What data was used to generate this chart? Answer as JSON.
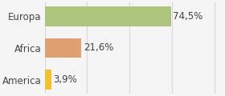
{
  "categories": [
    "America",
    "Africa",
    "Europa"
  ],
  "values": [
    3.9,
    21.6,
    74.5
  ],
  "labels": [
    "3,9%",
    "21,6%",
    "74,5%"
  ],
  "bar_colors": [
    "#f2c12e",
    "#e0a070",
    "#adc47d"
  ],
  "background_color": "#f5f5f5",
  "xlim": [
    0,
    105
  ],
  "bar_height": 0.62,
  "label_fontsize": 8.5,
  "tick_fontsize": 8.5,
  "grid_color": "#d8d8d8",
  "grid_ticks": [
    0,
    25,
    50,
    75,
    100
  ]
}
